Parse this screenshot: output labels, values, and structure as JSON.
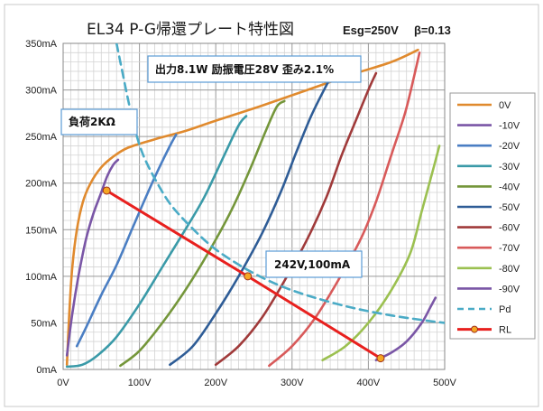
{
  "chart_data": {
    "type": "line",
    "title": "EL34 P-G帰還プレート特性図",
    "subtitle_left": "Esg=250V",
    "subtitle_right": "β=0.13",
    "xlim": [
      0,
      500
    ],
    "ylim": [
      0,
      350
    ],
    "x_ticks": [
      "0V",
      "100V",
      "200V",
      "300V",
      "400V",
      "500V"
    ],
    "y_ticks": [
      "0mA",
      "50mA",
      "100mA",
      "150mA",
      "200mA",
      "250mA",
      "300mA",
      "350mA"
    ],
    "x_tick_values": [
      0,
      100,
      200,
      300,
      400,
      500
    ],
    "y_tick_values": [
      0,
      50,
      100,
      150,
      200,
      250,
      300,
      350
    ],
    "grid": true,
    "legend_position": "right",
    "annotations": {
      "output_box": "出力8.1W 励振電圧28V 歪み2.1%",
      "load_box": "負荷2KΩ",
      "point_box": "242V,100mA"
    },
    "series": [
      {
        "name": "0V",
        "color": "#e08a2e",
        "style": "solid",
        "points": [
          [
            5,
            5
          ],
          [
            8,
            60
          ],
          [
            12,
            110
          ],
          [
            18,
            150
          ],
          [
            26,
            180
          ],
          [
            36,
            200
          ],
          [
            50,
            217
          ],
          [
            65,
            228
          ],
          [
            85,
            238
          ],
          [
            120,
            247
          ],
          [
            160,
            256
          ],
          [
            200,
            267
          ],
          [
            260,
            283
          ],
          [
            320,
            300
          ],
          [
            380,
            317
          ],
          [
            430,
            330
          ],
          [
            465,
            343
          ]
        ]
      },
      {
        "name": "-10V",
        "color": "#7a56a6",
        "style": "solid",
        "points": [
          [
            5,
            15
          ],
          [
            12,
            60
          ],
          [
            20,
            100
          ],
          [
            30,
            140
          ],
          [
            40,
            168
          ],
          [
            50,
            190
          ],
          [
            58,
            208
          ],
          [
            66,
            220
          ],
          [
            72,
            225
          ]
        ]
      },
      {
        "name": "-20V",
        "color": "#4a7ec3",
        "style": "solid",
        "points": [
          [
            18,
            25
          ],
          [
            30,
            45
          ],
          [
            50,
            80
          ],
          [
            70,
            112
          ],
          [
            90,
            150
          ],
          [
            110,
            188
          ],
          [
            125,
            215
          ],
          [
            140,
            240
          ],
          [
            148,
            252
          ]
        ]
      },
      {
        "name": "-30V",
        "color": "#3a9aa8",
        "style": "solid",
        "points": [
          [
            5,
            3
          ],
          [
            25,
            5
          ],
          [
            45,
            15
          ],
          [
            70,
            35
          ],
          [
            100,
            70
          ],
          [
            130,
            110
          ],
          [
            160,
            150
          ],
          [
            185,
            185
          ],
          [
            210,
            228
          ],
          [
            230,
            262
          ],
          [
            240,
            272
          ]
        ]
      },
      {
        "name": "-40V",
        "color": "#74963a",
        "style": "solid",
        "points": [
          [
            75,
            4
          ],
          [
            100,
            20
          ],
          [
            130,
            50
          ],
          [
            160,
            85
          ],
          [
            190,
            125
          ],
          [
            220,
            170
          ],
          [
            245,
            215
          ],
          [
            265,
            255
          ],
          [
            280,
            282
          ],
          [
            290,
            288
          ]
        ]
      },
      {
        "name": "-50V",
        "color": "#2e5c96",
        "style": "solid",
        "points": [
          [
            140,
            5
          ],
          [
            170,
            25
          ],
          [
            200,
            60
          ],
          [
            230,
            100
          ],
          [
            260,
            145
          ],
          [
            285,
            190
          ],
          [
            305,
            232
          ],
          [
            325,
            272
          ],
          [
            345,
            305
          ],
          [
            350,
            312
          ]
        ]
      },
      {
        "name": "-60V",
        "color": "#a03a3a",
        "style": "solid",
        "points": [
          [
            200,
            5
          ],
          [
            230,
            25
          ],
          [
            260,
            55
          ],
          [
            290,
            95
          ],
          [
            320,
            140
          ],
          [
            345,
            185
          ],
          [
            365,
            230
          ],
          [
            385,
            270
          ],
          [
            400,
            300
          ],
          [
            410,
            318
          ]
        ]
      },
      {
        "name": "-70V",
        "color": "#d85a5a",
        "style": "solid",
        "points": [
          [
            270,
            4
          ],
          [
            300,
            25
          ],
          [
            330,
            55
          ],
          [
            360,
            95
          ],
          [
            390,
            140
          ],
          [
            410,
            180
          ],
          [
            430,
            230
          ],
          [
            448,
            275
          ],
          [
            460,
            315
          ],
          [
            467,
            340
          ]
        ]
      },
      {
        "name": "-80V",
        "color": "#9bc050",
        "style": "solid",
        "points": [
          [
            340,
            10
          ],
          [
            370,
            25
          ],
          [
            400,
            50
          ],
          [
            430,
            85
          ],
          [
            455,
            125
          ],
          [
            470,
            170
          ],
          [
            485,
            215
          ],
          [
            493,
            240
          ]
        ]
      },
      {
        "name": "-90V",
        "color": "#7a56a6",
        "style": "solid",
        "points": [
          [
            410,
            10
          ],
          [
            430,
            18
          ],
          [
            450,
            30
          ],
          [
            470,
            50
          ],
          [
            482,
            68
          ],
          [
            488,
            77
          ]
        ]
      },
      {
        "name": "Pd",
        "color": "#4aabc6",
        "style": "dashed",
        "points": [
          [
            70,
            350
          ],
          [
            75,
            330
          ],
          [
            85,
            290
          ],
          [
            95,
            255
          ],
          [
            105,
            230
          ],
          [
            120,
            205
          ],
          [
            140,
            178
          ],
          [
            165,
            155
          ],
          [
            195,
            132
          ],
          [
            225,
            115
          ],
          [
            255,
            101
          ],
          [
            290,
            88
          ],
          [
            330,
            77
          ],
          [
            380,
            66
          ],
          [
            430,
            58
          ],
          [
            480,
            52
          ],
          [
            500,
            50
          ]
        ]
      },
      {
        "name": "RL",
        "color": "#e8201e",
        "style": "solid",
        "markers": true,
        "points": [
          [
            57,
            192
          ],
          [
            242,
            100
          ],
          [
            416,
            12
          ]
        ]
      }
    ]
  }
}
